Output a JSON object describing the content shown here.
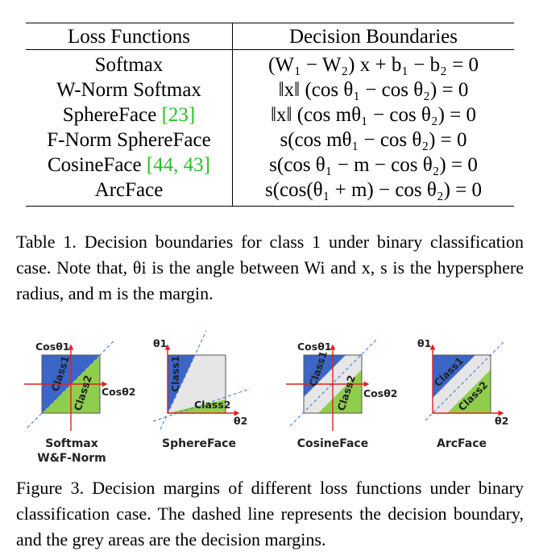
{
  "table": {
    "header": {
      "col1": "Loss Functions",
      "col2": "Decision Boundaries"
    },
    "rows": [
      {
        "name": "Softmax",
        "cite": "",
        "boundary": "(W₁ − W₂) x + b₁ − b₂ = 0"
      },
      {
        "name": "W-Norm Softmax",
        "cite": "",
        "boundary": "‖x‖ (cos θ₁ − cos θ₂) = 0"
      },
      {
        "name": "SphereFace ",
        "cite": "[23]",
        "boundary": "‖x‖ (cos mθ₁ − cos θ₂) = 0"
      },
      {
        "name": "F-Norm SphereFace",
        "cite": "",
        "boundary": "s(cos mθ₁ − cos θ₂) = 0"
      },
      {
        "name": "CosineFace ",
        "cite": "[44, 43]",
        "boundary": "s(cos θ₁ − m − cos θ₂) = 0"
      },
      {
        "name": "ArcFace",
        "cite": "",
        "boundary": "s(cos(θ₁ + m) − cos θ₂) = 0"
      }
    ]
  },
  "table_caption": "Table 1. Decision boundaries for class 1 under binary classification case. Note that, θi is the angle between Wi and x, s is the hypersphere radius, and m is the margin.",
  "figure": {
    "panels": [
      {
        "title_line1": "Softmax",
        "title_line2": "W&F-Norm",
        "y_axis": "Cosθ1",
        "x_axis": "Cosθ2",
        "class1": "Class1",
        "class2": "Class2"
      },
      {
        "title_line1": "SphereFace",
        "y_axis": "θ1",
        "x_axis": "θ2",
        "class1": "Class1",
        "class2": "Class2"
      },
      {
        "title_line1": "CosineFace",
        "y_axis": "Cosθ1",
        "x_axis": "Cosθ2",
        "class1": "Class1",
        "class2": "Class2"
      },
      {
        "title_line1": "ArcFace",
        "y_axis": "θ1",
        "x_axis": "θ2",
        "class1": "Class1",
        "class2": "Class2"
      }
    ],
    "colors": {
      "class1": "#3b66c8",
      "class2": "#8fce4d",
      "margin": "#e6e6e6",
      "axis": "#e0201b",
      "dashed": "#3a6fd8"
    }
  },
  "figure_caption": "Figure 3. Decision margins of different loss functions under binary classification case. The dashed line represents the decision boundary, and the grey areas are the decision margins."
}
